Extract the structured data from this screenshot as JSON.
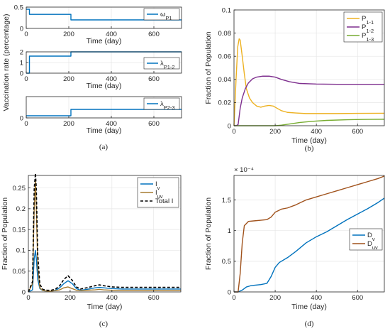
{
  "chart_data": [
    {
      "panel": "(a)",
      "type": "line",
      "ylabel": "Vaccination rate (percentage)",
      "subplots": [
        {
          "xlabel": "Time (day)",
          "xlim": [
            0,
            730
          ],
          "ylim": [
            0,
            0.5
          ],
          "xticks": [
            0,
            200,
            400,
            600
          ],
          "yticks": [
            0,
            0.5
          ],
          "xtick_labels": [
            "0",
            "200",
            "400",
            "600"
          ],
          "ytick_labels": [
            "0",
            "0.5"
          ],
          "grid": true,
          "legend": "top-right",
          "series": [
            {
              "name": "ω",
              "sub": "P1",
              "color": "#0072BD",
              "x": [
                0,
                15,
                15,
                210,
                210,
                730
              ],
              "y": [
                0.45,
                0.45,
                0.33,
                0.33,
                0.2,
                0.2
              ]
            }
          ]
        },
        {
          "xlabel": "Time (day)",
          "xlim": [
            0,
            730
          ],
          "ylim": [
            0,
            2
          ],
          "xticks": [
            0,
            200,
            400,
            600
          ],
          "yticks": [
            0,
            1,
            2
          ],
          "xtick_labels": [
            "0",
            "200",
            "400",
            "600"
          ],
          "ytick_labels": [
            "0",
            "1",
            "2"
          ],
          "grid": true,
          "legend": "right",
          "series": [
            {
              "name": "λ",
              "sub": "P1-2",
              "color": "#0072BD",
              "x": [
                0,
                15,
                15,
                210,
                210,
                730
              ],
              "y": [
                0,
                0,
                1.6,
                1.6,
                2.0,
                2.0
              ]
            }
          ]
        },
        {
          "xlabel": "Time (day)",
          "xlim": [
            0,
            730
          ],
          "ylim": [
            0,
            0.2
          ],
          "xticks": [
            0,
            200,
            400,
            600
          ],
          "yticks": [
            0
          ],
          "xtick_labels": [
            "0",
            "200",
            "400",
            "600"
          ],
          "ytick_labels": [
            "0"
          ],
          "grid": true,
          "legend": "top-right",
          "series": [
            {
              "name": "λ",
              "sub": "P2-3",
              "color": "#0072BD",
              "x": [
                0,
                210,
                210,
                730
              ],
              "y": [
                0.02,
                0.02,
                0.08,
                0.08
              ]
            }
          ]
        }
      ]
    },
    {
      "panel": "(b)",
      "type": "line",
      "xlabel": "Time (day)",
      "ylabel": "Fraction of Population",
      "xlim": [
        0,
        730
      ],
      "ylim": [
        0,
        0.1
      ],
      "xticks": [
        0,
        200,
        400,
        600
      ],
      "yticks": [
        0,
        0.02,
        0.04,
        0.06,
        0.08,
        0.1
      ],
      "xtick_labels": [
        "0",
        "200",
        "400",
        "600"
      ],
      "ytick_labels": [
        "0",
        "0.02",
        "0.04",
        "0.06",
        "0.08",
        "0.1"
      ],
      "grid": true,
      "legend": "top-right",
      "series": [
        {
          "name": "P",
          "sub": "1-1",
          "color": "#EDB120",
          "x": [
            0,
            10,
            18,
            25,
            30,
            40,
            50,
            60,
            75,
            90,
            110,
            130,
            150,
            170,
            190,
            210,
            230,
            260,
            300,
            350,
            400,
            500,
            600,
            730
          ],
          "y": [
            0,
            0.04,
            0.068,
            0.075,
            0.074,
            0.06,
            0.045,
            0.032,
            0.024,
            0.02,
            0.017,
            0.016,
            0.017,
            0.0175,
            0.017,
            0.015,
            0.013,
            0.0115,
            0.011,
            0.0105,
            0.0105,
            0.0105,
            0.0107,
            0.0108
          ]
        },
        {
          "name": "P",
          "sub": "1-2",
          "color": "#7E2F8E",
          "x": [
            0,
            10,
            20,
            30,
            40,
            55,
            70,
            90,
            110,
            140,
            170,
            200,
            230,
            270,
            320,
            400,
            500,
            600,
            730
          ],
          "y": [
            0,
            0,
            0.001,
            0.015,
            0.024,
            0.032,
            0.037,
            0.0405,
            0.042,
            0.0428,
            0.0428,
            0.042,
            0.04,
            0.038,
            0.0365,
            0.036,
            0.0358,
            0.0358,
            0.0358
          ]
        },
        {
          "name": "P",
          "sub": "1-3",
          "color": "#77AC30",
          "x": [
            0,
            200,
            230,
            270,
            320,
            380,
            450,
            550,
            650,
            730
          ],
          "y": [
            0,
            0,
            0.0005,
            0.0015,
            0.0028,
            0.0038,
            0.0046,
            0.0052,
            0.0055,
            0.0056
          ]
        }
      ]
    },
    {
      "panel": "(c)",
      "type": "line",
      "xlabel": "Time (day)",
      "ylabel": "Fraction of Population",
      "xlim": [
        0,
        730
      ],
      "ylim": [
        0,
        0.28
      ],
      "xticks": [
        0,
        200,
        400,
        600
      ],
      "yticks": [
        0,
        0.05,
        0.1,
        0.15,
        0.2,
        0.25
      ],
      "xtick_labels": [
        "0",
        "200",
        "400",
        "600"
      ],
      "ytick_labels": [
        "0",
        "0.05",
        "0.1",
        "0.15",
        "0.2",
        "0.25"
      ],
      "grid": true,
      "legend": "top-right",
      "series": [
        {
          "name": "I",
          "sub": "v",
          "color": "#0072BD",
          "style": "solid",
          "x": [
            0,
            20,
            28,
            34,
            38,
            45,
            55,
            70,
            90,
            110,
            130,
            150,
            170,
            190,
            210,
            230,
            250,
            280,
            320,
            340,
            360,
            400,
            450,
            500,
            600,
            730
          ],
          "y": [
            0,
            0.005,
            0.08,
            0.1,
            0.08,
            0.03,
            0.008,
            0.003,
            0.002,
            0.002,
            0.004,
            0.01,
            0.02,
            0.027,
            0.02,
            0.008,
            0.004,
            0.006,
            0.01,
            0.011,
            0.01,
            0.008,
            0.007,
            0.007,
            0.007,
            0.007
          ]
        },
        {
          "name": "I",
          "sub": "uv",
          "color": "#A67B30",
          "style": "solid",
          "x": [
            0,
            20,
            28,
            34,
            38,
            45,
            55,
            70,
            90,
            110,
            130,
            150,
            170,
            190,
            210,
            230,
            250,
            280,
            320,
            340,
            360,
            400,
            450,
            500,
            600,
            730
          ],
          "y": [
            0,
            0.02,
            0.2,
            0.27,
            0.2,
            0.06,
            0.01,
            0.003,
            0.002,
            0.002,
            0.003,
            0.005,
            0.01,
            0.012,
            0.008,
            0.004,
            0.003,
            0.004,
            0.005,
            0.006,
            0.005,
            0.004,
            0.004,
            0.004,
            0.004,
            0.004
          ]
        },
        {
          "name": "Total I",
          "sub": "",
          "color": "#000000",
          "style": "dashed",
          "x": [
            0,
            20,
            28,
            34,
            38,
            45,
            55,
            70,
            90,
            110,
            130,
            150,
            170,
            190,
            210,
            230,
            250,
            280,
            320,
            340,
            360,
            400,
            450,
            500,
            600,
            730
          ],
          "y": [
            0,
            0.025,
            0.25,
            0.285,
            0.25,
            0.09,
            0.018,
            0.006,
            0.004,
            0.004,
            0.007,
            0.015,
            0.03,
            0.039,
            0.028,
            0.012,
            0.007,
            0.01,
            0.015,
            0.017,
            0.015,
            0.012,
            0.011,
            0.011,
            0.011,
            0.011
          ]
        }
      ]
    },
    {
      "panel": "(d)",
      "type": "line",
      "xlabel": "Time (day)",
      "ylabel": "Fraction of Population",
      "y_multiplier": "× 10⁻⁴",
      "xlim": [
        0,
        730
      ],
      "ylim": [
        0,
        1.9
      ],
      "xticks": [
        0,
        200,
        400,
        600
      ],
      "yticks": [
        0,
        0.5,
        1,
        1.5
      ],
      "xtick_labels": [
        "0",
        "200",
        "400",
        "600"
      ],
      "ytick_labels": [
        "0",
        "0.5",
        "1",
        "1.5"
      ],
      "grid": true,
      "legend": "right",
      "series": [
        {
          "name": "D",
          "sub": "v",
          "color": "#0072BD",
          "x": [
            0,
            20,
            40,
            60,
            80,
            100,
            130,
            160,
            180,
            200,
            220,
            260,
            300,
            350,
            400,
            450,
            500,
            550,
            600,
            650,
            700,
            730
          ],
          "y": [
            0,
            0,
            0.03,
            0.08,
            0.1,
            0.11,
            0.12,
            0.14,
            0.25,
            0.4,
            0.48,
            0.56,
            0.66,
            0.8,
            0.9,
            0.98,
            1.08,
            1.18,
            1.27,
            1.36,
            1.46,
            1.53
          ]
        },
        {
          "name": "D",
          "sub": "uv",
          "color": "#A0521C",
          "x": [
            0,
            20,
            30,
            40,
            50,
            70,
            100,
            130,
            160,
            180,
            200,
            230,
            260,
            300,
            350,
            400,
            450,
            500,
            550,
            600,
            650,
            700,
            730
          ],
          "y": [
            0,
            0,
            0.3,
            0.8,
            1.08,
            1.15,
            1.16,
            1.17,
            1.18,
            1.22,
            1.3,
            1.35,
            1.37,
            1.42,
            1.5,
            1.55,
            1.6,
            1.65,
            1.7,
            1.75,
            1.8,
            1.85,
            1.89
          ]
        }
      ]
    }
  ]
}
